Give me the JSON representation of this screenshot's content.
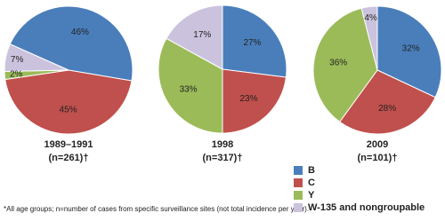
{
  "chart_data": [
    {
      "type": "pie",
      "title": "1989–1991",
      "subtitle": "(n=261)†",
      "categories": [
        "B",
        "C",
        "Y",
        "W-135 and nongroupable"
      ],
      "colors": [
        "#4a7ebb",
        "#c0504d",
        "#9bbb59",
        "#cbc3dd"
      ],
      "values": [
        46,
        45,
        2,
        7
      ],
      "value_labels": [
        "46%",
        "45%",
        "2%",
        "7%"
      ]
    },
    {
      "type": "pie",
      "title": "1998",
      "subtitle": "(n=317)†",
      "categories": [
        "B",
        "C",
        "Y",
        "W-135 and nongroupable"
      ],
      "colors": [
        "#4a7ebb",
        "#c0504d",
        "#9bbb59",
        "#cbc3dd"
      ],
      "values": [
        27,
        23,
        33,
        17
      ],
      "value_labels": [
        "27%",
        "23%",
        "33%",
        "17%"
      ]
    },
    {
      "type": "pie",
      "title": "2009",
      "subtitle": "(n=101)†",
      "categories": [
        "B",
        "C",
        "Y",
        "W-135 and nongroupable"
      ],
      "colors": [
        "#4a7ebb",
        "#c0504d",
        "#9bbb59",
        "#cbc3dd"
      ],
      "values": [
        32,
        28,
        36,
        4
      ],
      "value_labels": [
        "32%",
        "28%",
        "36%",
        "4%"
      ]
    }
  ],
  "footnote": "*All age groups; n=number of cases from specific surveillance sites (not total incidence per year)."
}
